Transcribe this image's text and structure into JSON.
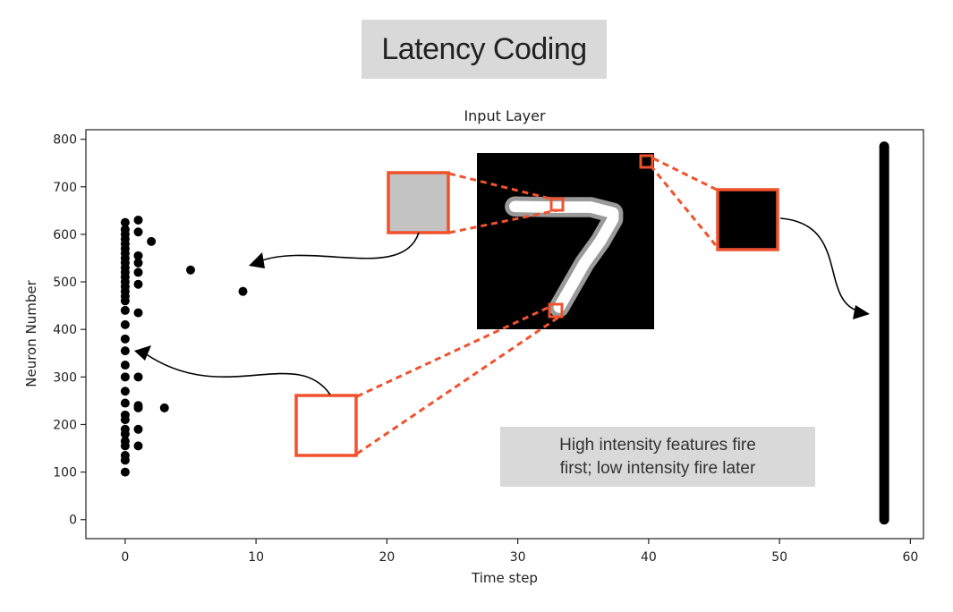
{
  "page": {
    "heading": "Latency Coding",
    "note_line1": "High intensity features fire",
    "note_line2": "first; low intensity fire later",
    "accent_color": "#f0522d"
  },
  "chart_data": {
    "type": "scatter",
    "title": "Input Layer",
    "xlabel": "Time step",
    "ylabel": "Neuron Number",
    "xlim": [
      -3,
      61
    ],
    "ylim": [
      -40,
      820
    ],
    "xticks": [
      0,
      10,
      20,
      30,
      40,
      50,
      60
    ],
    "yticks": [
      0,
      100,
      200,
      300,
      400,
      500,
      600,
      700,
      800
    ],
    "grid": false,
    "points": [
      {
        "x": 0,
        "y": 100
      },
      {
        "x": 0,
        "y": 125
      },
      {
        "x": 0,
        "y": 135
      },
      {
        "x": 0,
        "y": 155
      },
      {
        "x": 0,
        "y": 165
      },
      {
        "x": 0,
        "y": 180
      },
      {
        "x": 0,
        "y": 190
      },
      {
        "x": 0,
        "y": 210
      },
      {
        "x": 0,
        "y": 220
      },
      {
        "x": 0,
        "y": 245
      },
      {
        "x": 0,
        "y": 270
      },
      {
        "x": 0,
        "y": 300
      },
      {
        "x": 0,
        "y": 325
      },
      {
        "x": 0,
        "y": 355
      },
      {
        "x": 0,
        "y": 380
      },
      {
        "x": 0,
        "y": 410
      },
      {
        "x": 0,
        "y": 440
      },
      {
        "x": 0,
        "y": 460
      },
      {
        "x": 0,
        "y": 470
      },
      {
        "x": 0,
        "y": 480
      },
      {
        "x": 0,
        "y": 490
      },
      {
        "x": 0,
        "y": 500
      },
      {
        "x": 0,
        "y": 510
      },
      {
        "x": 0,
        "y": 520
      },
      {
        "x": 0,
        "y": 530
      },
      {
        "x": 0,
        "y": 540
      },
      {
        "x": 0,
        "y": 550
      },
      {
        "x": 0,
        "y": 560
      },
      {
        "x": 0,
        "y": 570
      },
      {
        "x": 0,
        "y": 580
      },
      {
        "x": 0,
        "y": 590
      },
      {
        "x": 0,
        "y": 600
      },
      {
        "x": 0,
        "y": 610
      },
      {
        "x": 0,
        "y": 625
      },
      {
        "x": 1,
        "y": 155
      },
      {
        "x": 1,
        "y": 190
      },
      {
        "x": 1,
        "y": 235
      },
      {
        "x": 1,
        "y": 240
      },
      {
        "x": 1,
        "y": 300
      },
      {
        "x": 1,
        "y": 435
      },
      {
        "x": 1,
        "y": 495
      },
      {
        "x": 1,
        "y": 520
      },
      {
        "x": 1,
        "y": 540
      },
      {
        "x": 1,
        "y": 555
      },
      {
        "x": 1,
        "y": 605
      },
      {
        "x": 1,
        "y": 630
      },
      {
        "x": 2,
        "y": 585
      },
      {
        "x": 3,
        "y": 235
      },
      {
        "x": 5,
        "y": 525
      },
      {
        "x": 9,
        "y": 480
      },
      {
        "x": 58,
        "y_range": [
          0,
          785
        ],
        "note": "dense column of spikes"
      }
    ]
  }
}
